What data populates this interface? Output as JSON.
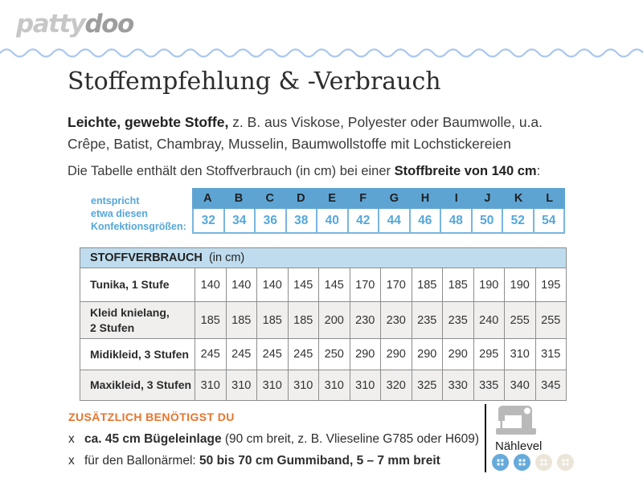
{
  "logo": {
    "part1": "patty",
    "part2": "doo"
  },
  "header": {
    "title": "Stoffempfehlung & -Verbrauch"
  },
  "intro": {
    "bold": "Leichte, gewebte Stoffe,",
    "rest": " z. B. aus Viskose, Polyester oder Baumwolle, u.a. Crêpe, Batist, Chambray, Musselin, Baumwollstoffe mit Lochstickereien"
  },
  "table_note": {
    "prefix": "Die Tabelle enthält den Stoffverbrauch (in cm) bei einer ",
    "bold": "Stoffbreite von 140 cm",
    "suffix": ":"
  },
  "size_table": {
    "caption_lines": [
      "entspricht",
      "etwa diesen",
      "Konfektionsgrößen:"
    ],
    "letters": [
      "A",
      "B",
      "C",
      "D",
      "E",
      "F",
      "G",
      "H",
      "I",
      "J",
      "K",
      "L"
    ],
    "sizes": [
      "32",
      "34",
      "36",
      "38",
      "40",
      "42",
      "44",
      "46",
      "48",
      "50",
      "52",
      "54"
    ]
  },
  "consumption_table": {
    "title_bold": "STOFFVERBRAUCH",
    "title_rest": "  (in cm)",
    "rows": [
      {
        "label_lines": [
          "Tunika, 1 Stufe"
        ],
        "values": [
          "140",
          "140",
          "140",
          "145",
          "145",
          "170",
          "170",
          "185",
          "185",
          "190",
          "190",
          "195"
        ]
      },
      {
        "label_lines": [
          "Kleid knielang,",
          "2 Stufen"
        ],
        "values": [
          "185",
          "185",
          "185",
          "185",
          "200",
          "230",
          "230",
          "235",
          "235",
          "240",
          "255",
          "255"
        ]
      },
      {
        "label_lines": [
          "Midikleid, 3 Stufen"
        ],
        "values": [
          "245",
          "245",
          "245",
          "245",
          "250",
          "290",
          "290",
          "290",
          "290",
          "295",
          "310",
          "315"
        ]
      },
      {
        "label_lines": [
          "Maxikleid, 3 Stufen"
        ],
        "values": [
          "310",
          "310",
          "310",
          "310",
          "310",
          "310",
          "320",
          "325",
          "330",
          "335",
          "340",
          "345"
        ]
      }
    ]
  },
  "extras": {
    "heading": "ZUSÄTZLICH BENÖTIGST DU",
    "items": [
      {
        "marker": "x",
        "pre": "",
        "bold": "ca. 45 cm Bügeleinlage",
        "post": " (90 cm breit, z. B. Vlieseline G785 oder H609)"
      },
      {
        "marker": "x",
        "pre": "für den Ballonärmel: ",
        "bold": "50 bis 70 cm Gummiband, 5 – 7 mm breit",
        "post": ""
      }
    ]
  },
  "naehlevel": {
    "label": "Nählevel",
    "level": 2,
    "max_level": 4
  },
  "colors": {
    "accent_blue": "#5ea4d3",
    "light_blue_bar": "#bedcee",
    "number_blue": "#54a7da",
    "wave_blue": "#a9c7ef",
    "orange": "#e8742c",
    "button_active": "#66aadc",
    "button_inactive": "#ebe4d8"
  }
}
